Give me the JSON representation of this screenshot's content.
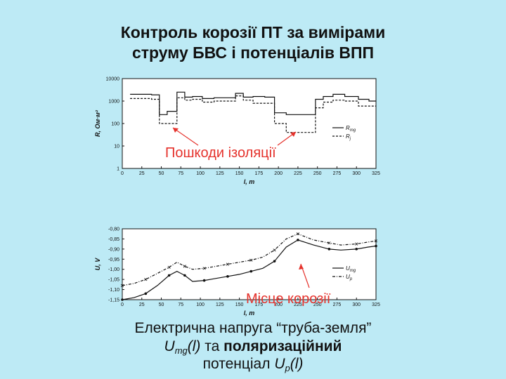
{
  "title_line1": "Контроль корозії ПТ за вимірами",
  "title_line2": "струму БВС і потенціалів ВПП",
  "colors": {
    "background": "#bdeaf5",
    "annotation": "#e5322c",
    "line": "#111111"
  },
  "chart_data": [
    {
      "type": "line",
      "ylabel": "R, Ом·м²",
      "xlabel": "l, m",
      "yscale": "log",
      "ylim": [
        1,
        10000
      ],
      "xlim": [
        0,
        325
      ],
      "grid": false,
      "legend_position": "lower-right",
      "x_ticks": [
        "0",
        "25",
        "50",
        "75",
        "100",
        "125",
        "150",
        "175",
        "200",
        "225",
        "250",
        "275",
        "300",
        "325"
      ],
      "y_ticks": [
        "1",
        "10",
        "100",
        "1000",
        "10000"
      ],
      "series": [
        {
          "name": "Rmg",
          "style": "solid",
          "x": [
            15,
            30,
            45,
            50,
            65,
            75,
            85,
            95,
            110,
            125,
            140,
            150,
            160,
            175,
            190,
            200,
            220,
            245,
            250,
            265,
            275,
            295,
            310,
            322
          ],
          "y": [
            2000,
            2000,
            1900,
            250,
            350,
            2500,
            1500,
            1600,
            1300,
            1400,
            1400,
            2200,
            1500,
            1600,
            1500,
            300,
            250,
            250,
            1200,
            1600,
            2000,
            1600,
            1200,
            1000
          ]
        },
        {
          "name": "Rj",
          "style": "dashed",
          "x": [
            15,
            30,
            45,
            50,
            65,
            75,
            85,
            95,
            110,
            125,
            140,
            150,
            160,
            175,
            190,
            200,
            220,
            245,
            250,
            265,
            275,
            295,
            310,
            322
          ],
          "y": [
            1300,
            1300,
            1200,
            100,
            100,
            1400,
            1100,
            1200,
            900,
            1000,
            1000,
            1700,
            1100,
            800,
            800,
            100,
            40,
            40,
            500,
            900,
            1100,
            1000,
            600,
            600
          ]
        }
      ],
      "annotation": "Пошкоди ізоляції"
    },
    {
      "type": "line",
      "ylabel": "U, V",
      "xlabel": "l, m",
      "ylim": [
        -1.15,
        -0.8
      ],
      "xlim": [
        0,
        325
      ],
      "grid": false,
      "legend_position": "lower-right",
      "x_ticks": [
        "0",
        "25",
        "50",
        "75",
        "100",
        "125",
        "150",
        "175",
        "200",
        "225",
        "250",
        "275",
        "300",
        "325"
      ],
      "y_ticks": [
        "-0,80",
        "-0,85",
        "-0,90",
        "-0,95",
        "-1,00",
        "-1,05",
        "-1,10",
        "-1,15"
      ],
      "series": [
        {
          "name": "Umg",
          "style": "solid-dots",
          "x": [
            0,
            15,
            30,
            45,
            60,
            70,
            80,
            90,
            105,
            120,
            135,
            150,
            165,
            180,
            195,
            210,
            225,
            245,
            265,
            280,
            300,
            315,
            325
          ],
          "y": [
            -1.15,
            -1.14,
            -1.12,
            -1.08,
            -1.03,
            -1.01,
            -1.03,
            -1.06,
            -1.055,
            -1.045,
            -1.035,
            -1.025,
            -1.01,
            -0.995,
            -0.96,
            -0.89,
            -0.855,
            -0.88,
            -0.9,
            -0.905,
            -0.9,
            -0.89,
            -0.885
          ]
        },
        {
          "name": "Up",
          "style": "dashdot",
          "x": [
            0,
            15,
            30,
            45,
            60,
            70,
            80,
            90,
            105,
            120,
            135,
            150,
            165,
            180,
            195,
            210,
            225,
            245,
            265,
            280,
            300,
            315,
            325
          ],
          "y": [
            -1.08,
            -1.07,
            -1.05,
            -1.02,
            -0.99,
            -0.965,
            -0.985,
            -1.0,
            -0.995,
            -0.985,
            -0.975,
            -0.965,
            -0.955,
            -0.94,
            -0.905,
            -0.85,
            -0.825,
            -0.855,
            -0.87,
            -0.88,
            -0.875,
            -0.865,
            -0.86
          ]
        }
      ],
      "annotation": "Місце корозії"
    }
  ],
  "caption": {
    "line1": "Електрична напруга “труба-земля”",
    "U": "U",
    "mg": "mg",
    "l_paren": "(l)",
    "ta": " та ",
    "bold_word": "поляризаційний",
    "potential": "потенціал ",
    "p": "p"
  }
}
